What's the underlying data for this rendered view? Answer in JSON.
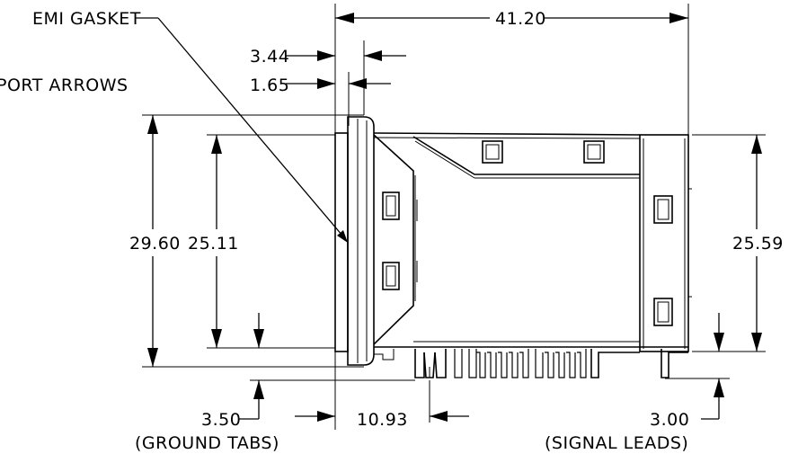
{
  "labels": {
    "emi_gasket": "EMI GASKET",
    "support_arrows": "PORT ARROWS",
    "ground_tabs": "(GROUND TABS)",
    "signal_leads": "(SIGNAL LEADS)"
  },
  "dimensions": {
    "overall_length": "41.20",
    "gasket_offset_outer": "3.44",
    "gasket_offset_inner": "1.65",
    "overall_height": "29.60",
    "body_height": "25.11",
    "right_height": "25.59",
    "ground_tab_length": "3.50",
    "tab_to_lead": "10.93",
    "signal_lead_length": "3.00"
  }
}
